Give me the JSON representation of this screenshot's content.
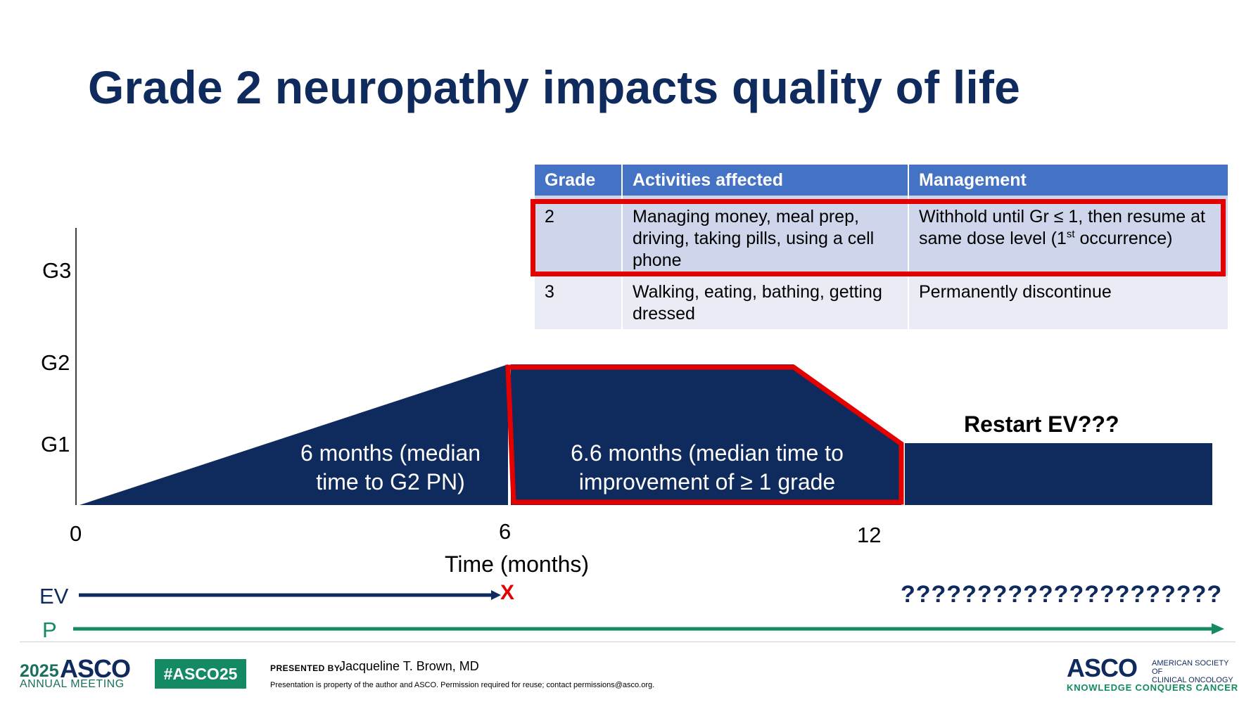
{
  "slide": {
    "title": "Grade 2 neuropathy impacts quality of life"
  },
  "table": {
    "headers": [
      "Grade",
      "Activities affected",
      "Management"
    ],
    "rows": [
      {
        "grade": "2",
        "activities": "Managing money, meal prep, driving, taking pills, using a cell phone",
        "management_pre": "Withhold until Gr ≤ 1, then resume at same dose level (1",
        "management_sup": "st",
        "management_post": " occurrence)"
      },
      {
        "grade": "3",
        "activities": "Walking, eating, bathing, getting dressed",
        "management_pre": "Permanently discontinue",
        "management_sup": "",
        "management_post": ""
      }
    ],
    "highlighted_row": "2",
    "header_color": "#4472c4"
  },
  "diagram": {
    "y_ticks": [
      "G3",
      "G2",
      "G1"
    ],
    "x_ticks": [
      "0",
      "6",
      "12"
    ],
    "x_label": "Time (months)",
    "shape_color": "#0f2a5c",
    "highlight_color": "#e50000",
    "segments": [
      {
        "label_lines": [
          "6 months (median",
          "time to G2 PN)"
        ]
      },
      {
        "label_lines": [
          "6.6 months (median time to",
          "improvement of ≥ 1 grade"
        ]
      }
    ],
    "restart_label": "Restart EV???",
    "ev_label": "EV",
    "ev_stop_mark": "X",
    "ev_future": "?????????????????????",
    "p_label": "P",
    "p_color": "#138a63"
  },
  "footer": {
    "year": "2025",
    "asco": "ASCO",
    "meeting": "ANNUAL MEETING",
    "hashtag": "#ASCO25",
    "presented_by": "PRESENTED BY:",
    "presenter": "Jacqueline T. Brown, MD",
    "disclaimer": "Presentation is property of the author and ASCO. Permission required for reuse; contact permissions@asco.org.",
    "asco_right": "ASCO",
    "society_line1": "AMERICAN SOCIETY OF",
    "society_line2": "CLINICAL ONCOLOGY",
    "tagline": "KNOWLEDGE CONQUERS CANCER"
  }
}
